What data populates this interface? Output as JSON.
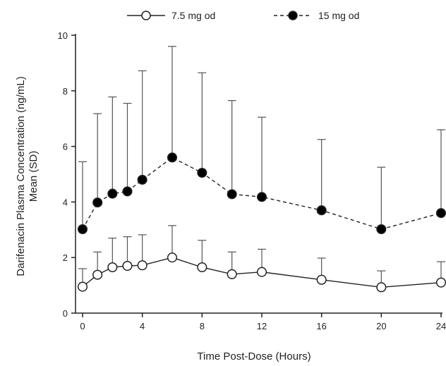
{
  "chart_data": {
    "type": "line",
    "title": "",
    "xlabel": "Time Post-Dose (Hours)",
    "ylabel_line1": "Darifenacin Plasma Concentration (ng/mL)",
    "ylabel_line2": "Mean (SD)",
    "xlim": [
      0,
      24
    ],
    "ylim": [
      0,
      10
    ],
    "x_ticks": [
      0,
      4,
      8,
      12,
      16,
      20,
      24
    ],
    "y_ticks": [
      0,
      2,
      4,
      6,
      8,
      10
    ],
    "grid": false,
    "legend_position": "top",
    "series": [
      {
        "name": "7.5 mg od",
        "marker": "open-circle",
        "line_style": "solid",
        "x": [
          0,
          1,
          2,
          3,
          4,
          6,
          8,
          10,
          12,
          16,
          20,
          24
        ],
        "y": [
          0.95,
          1.38,
          1.65,
          1.7,
          1.72,
          2.0,
          1.65,
          1.4,
          1.48,
          1.2,
          0.93,
          1.1
        ],
        "sd_upper": [
          1.6,
          2.2,
          2.7,
          2.75,
          2.82,
          3.15,
          2.62,
          2.2,
          2.3,
          1.98,
          1.52,
          1.85
        ]
      },
      {
        "name": "15 mg od",
        "marker": "filled-circle",
        "line_style": "dashed",
        "x": [
          0,
          1,
          2,
          3,
          4,
          6,
          8,
          10,
          12,
          16,
          20,
          24
        ],
        "y": [
          3.02,
          3.98,
          4.3,
          4.38,
          4.8,
          5.6,
          5.05,
          4.28,
          4.18,
          3.7,
          3.02,
          3.6
        ],
        "sd_upper": [
          5.45,
          7.18,
          7.78,
          7.55,
          8.72,
          9.6,
          8.65,
          7.65,
          7.05,
          6.25,
          5.25,
          6.6
        ]
      }
    ]
  }
}
